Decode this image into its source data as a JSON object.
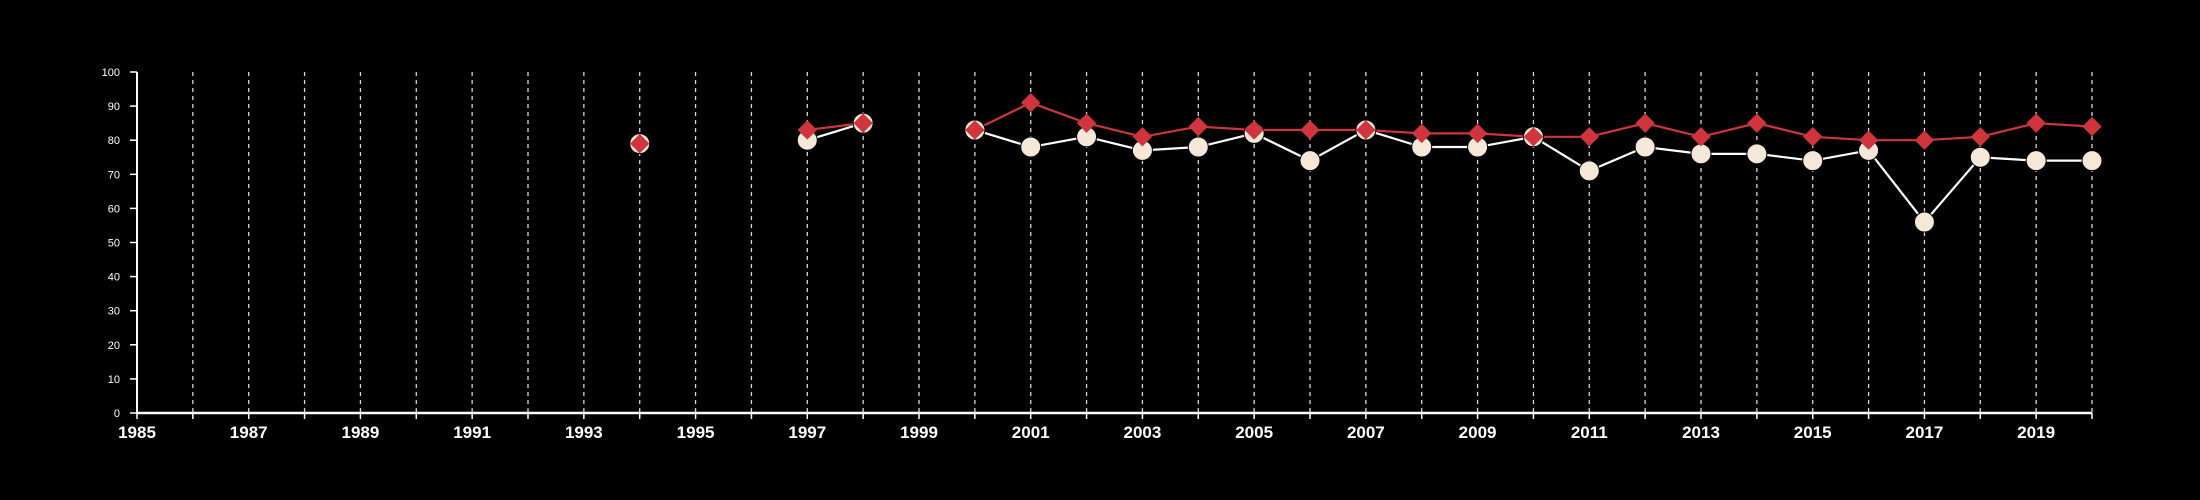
{
  "chart_data": {
    "type": "line",
    "title": "",
    "xlabel": "",
    "ylabel": "",
    "xlim": [
      1985,
      2020
    ],
    "ylim": [
      0,
      100
    ],
    "yticks": [
      0,
      10,
      20,
      30,
      40,
      50,
      60,
      70,
      80,
      90,
      100
    ],
    "xticks": [
      1985,
      1987,
      1989,
      1991,
      1993,
      1995,
      1997,
      1999,
      2001,
      2003,
      2005,
      2007,
      2009,
      2011,
      2013,
      2015,
      2017,
      2019
    ],
    "grid": "vertical dashed lines at every year",
    "legend": "none",
    "background": "#000000",
    "axis_color": "#ffffff",
    "series": [
      {
        "marker": "circle",
        "color": "#f6e8d8",
        "line_color": "#ffffff",
        "points": [
          {
            "x": 1994,
            "y": 79
          },
          {
            "x": 1997,
            "y": 80
          },
          {
            "x": 1998,
            "y": 85
          },
          {
            "x": 2000,
            "y": 83
          },
          {
            "x": 2001,
            "y": 78
          },
          {
            "x": 2002,
            "y": 81
          },
          {
            "x": 2003,
            "y": 77
          },
          {
            "x": 2004,
            "y": 78
          },
          {
            "x": 2005,
            "y": 82
          },
          {
            "x": 2006,
            "y": 74
          },
          {
            "x": 2007,
            "y": 83
          },
          {
            "x": 2008,
            "y": 78
          },
          {
            "x": 2009,
            "y": 78
          },
          {
            "x": 2010,
            "y": 81
          },
          {
            "x": 2011,
            "y": 71
          },
          {
            "x": 2012,
            "y": 78
          },
          {
            "x": 2013,
            "y": 76
          },
          {
            "x": 2014,
            "y": 76
          },
          {
            "x": 2015,
            "y": 74
          },
          {
            "x": 2016,
            "y": 77
          },
          {
            "x": 2017,
            "y": 56
          },
          {
            "x": 2018,
            "y": 75
          },
          {
            "x": 2019,
            "y": 74
          },
          {
            "x": 2020,
            "y": 74
          }
        ]
      },
      {
        "marker": "diamond",
        "color": "#d0343c",
        "line_color": "#d0343c",
        "points": [
          {
            "x": 1994,
            "y": 79
          },
          {
            "x": 1997,
            "y": 83
          },
          {
            "x": 1998,
            "y": 85
          },
          {
            "x": 2000,
            "y": 83
          },
          {
            "x": 2001,
            "y": 91
          },
          {
            "x": 2002,
            "y": 85
          },
          {
            "x": 2003,
            "y": 81
          },
          {
            "x": 2004,
            "y": 84
          },
          {
            "x": 2005,
            "y": 83
          },
          {
            "x": 2006,
            "y": 83
          },
          {
            "x": 2007,
            "y": 83
          },
          {
            "x": 2008,
            "y": 82
          },
          {
            "x": 2009,
            "y": 82
          },
          {
            "x": 2010,
            "y": 81
          },
          {
            "x": 2011,
            "y": 81
          },
          {
            "x": 2012,
            "y": 85
          },
          {
            "x": 2013,
            "y": 81
          },
          {
            "x": 2014,
            "y": 85
          },
          {
            "x": 2015,
            "y": 81
          },
          {
            "x": 2016,
            "y": 80
          },
          {
            "x": 2017,
            "y": 80
          },
          {
            "x": 2018,
            "y": 81
          },
          {
            "x": 2019,
            "y": 85
          },
          {
            "x": 2020,
            "y": 84
          }
        ]
      }
    ]
  }
}
